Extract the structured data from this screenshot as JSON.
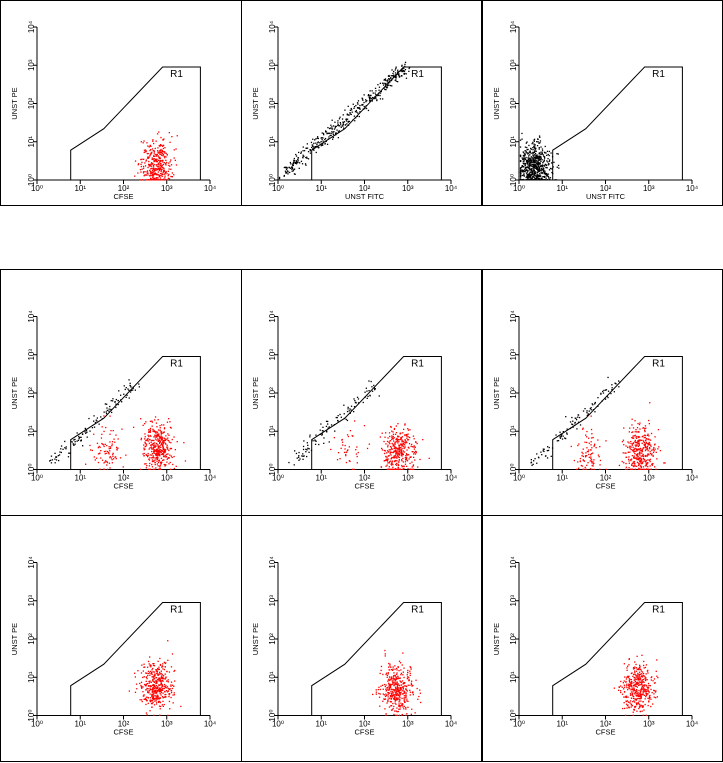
{
  "colors": {
    "gated": "#ff0000",
    "ungated": "#000000",
    "gate_line": "#000000",
    "frame": "#000000"
  },
  "chart_data": [
    {
      "type": "scatter",
      "scale": "log",
      "xlim": [
        1,
        10000
      ],
      "ylim": [
        1,
        10000
      ],
      "xlabel": "CFSE",
      "ylabel": "UNST PE",
      "x_ticks": [
        "10⁰",
        "10¹",
        "10²",
        "10³",
        "10⁴"
      ],
      "y_ticks": [
        "10⁰",
        "10¹",
        "10²",
        "10³",
        "10⁴"
      ],
      "gate": "R1",
      "populations": [
        {
          "color": "red",
          "x_center": 550,
          "y_center": 2.5,
          "n": 380
        }
      ]
    },
    {
      "type": "scatter",
      "scale": "log",
      "xlim": [
        1,
        10000
      ],
      "ylim": [
        1,
        10000
      ],
      "xlabel": "UNST FITC",
      "ylabel": "UNST PE",
      "x_ticks": [
        "10⁰",
        "10¹",
        "10²",
        "10³",
        "10⁴"
      ],
      "y_ticks": [
        "10⁰",
        "10¹",
        "10²",
        "10³",
        "10⁴"
      ],
      "gate": "R1",
      "populations": [
        {
          "color": "black",
          "shape": "diagonal",
          "x_from": 1.2,
          "x_to": 900,
          "y_from": 1.5,
          "y_to": 900,
          "n": 420
        }
      ]
    },
    {
      "type": "scatter",
      "scale": "log",
      "xlim": [
        1,
        10000
      ],
      "ylim": [
        1,
        10000
      ],
      "xlabel": "UNST FITC",
      "ylabel": "UNST PE",
      "x_ticks": [
        "10⁰",
        "10¹",
        "10²",
        "10³",
        "10⁴"
      ],
      "y_ticks": [
        "10⁰",
        "10¹",
        "10²",
        "10³",
        "10⁴"
      ],
      "gate": "R1",
      "populations": [
        {
          "color": "black",
          "x_center": 2.2,
          "y_center": 2.2,
          "n": 650
        }
      ]
    },
    {
      "type": "scatter",
      "scale": "log",
      "xlim": [
        1,
        10000
      ],
      "ylim": [
        1,
        10000
      ],
      "xlabel": "CFSE",
      "ylabel": "UNST PE",
      "x_ticks": [
        "10⁰",
        "10¹",
        "10²",
        "10³",
        "10⁴"
      ],
      "y_ticks": [
        "10⁰",
        "10¹",
        "10²",
        "10³",
        "10⁴"
      ],
      "gate": "R1",
      "populations": [
        {
          "color": "red",
          "x_center": 40,
          "y_center": 3,
          "n": 90
        },
        {
          "color": "red",
          "x_center": 600,
          "y_center": 4,
          "n": 380
        },
        {
          "color": "black",
          "shape": "diagonal",
          "x_from": 2,
          "x_to": 200,
          "y_from": 1.5,
          "y_to": 200,
          "n": 120
        }
      ]
    },
    {
      "type": "scatter",
      "scale": "log",
      "xlim": [
        1,
        10000
      ],
      "ylim": [
        1,
        10000
      ],
      "xlabel": "CFSE",
      "ylabel": "UNST PE",
      "x_ticks": [
        "10⁰",
        "10¹",
        "10²",
        "10³",
        "10⁴"
      ],
      "y_ticks": [
        "10⁰",
        "10¹",
        "10²",
        "10³",
        "10⁴"
      ],
      "gate": "R1",
      "populations": [
        {
          "color": "red",
          "x_center": 40,
          "y_center": 3,
          "n": 40
        },
        {
          "color": "red",
          "x_center": 600,
          "y_center": 3,
          "n": 360
        },
        {
          "color": "black",
          "shape": "diagonal",
          "x_from": 2,
          "x_to": 200,
          "y_from": 1.5,
          "y_to": 200,
          "n": 110
        }
      ]
    },
    {
      "type": "scatter",
      "scale": "log",
      "xlim": [
        1,
        10000
      ],
      "ylim": [
        1,
        10000
      ],
      "xlabel": "CFSE",
      "ylabel": "UNST PE",
      "x_ticks": [
        "10⁰",
        "10¹",
        "10²",
        "10³",
        "10⁴"
      ],
      "y_ticks": [
        "10⁰",
        "10¹",
        "10²",
        "10³",
        "10⁴"
      ],
      "gate": "R1",
      "populations": [
        {
          "color": "red",
          "x_center": 40,
          "y_center": 3,
          "n": 90
        },
        {
          "color": "red",
          "x_center": 600,
          "y_center": 3,
          "n": 360
        },
        {
          "color": "black",
          "shape": "diagonal",
          "x_from": 2,
          "x_to": 200,
          "y_from": 1.5,
          "y_to": 200,
          "n": 110
        }
      ]
    },
    {
      "type": "scatter",
      "scale": "log",
      "xlim": [
        1,
        10000
      ],
      "ylim": [
        1,
        10000
      ],
      "xlabel": "CFSE",
      "ylabel": "UNST PE",
      "x_ticks": [
        "10⁰",
        "10¹",
        "10²",
        "10³",
        "10⁴"
      ],
      "y_ticks": [
        "10⁰",
        "10¹",
        "10²",
        "10³",
        "10⁴"
      ],
      "gate": "R1",
      "populations": [
        {
          "color": "red",
          "x_center": 550,
          "y_center": 6,
          "n": 420
        }
      ]
    },
    {
      "type": "scatter",
      "scale": "log",
      "xlim": [
        1,
        10000
      ],
      "ylim": [
        1,
        10000
      ],
      "xlabel": "CFSE",
      "ylabel": "UNST PE",
      "x_ticks": [
        "10⁰",
        "10¹",
        "10²",
        "10³",
        "10⁴"
      ],
      "y_ticks": [
        "10⁰",
        "10¹",
        "10²",
        "10³",
        "10⁴"
      ],
      "gate": "R1",
      "populations": [
        {
          "color": "red",
          "x_center": 550,
          "y_center": 5,
          "n": 400
        }
      ]
    },
    {
      "type": "scatter",
      "scale": "log",
      "xlim": [
        1,
        10000
      ],
      "ylim": [
        1,
        10000
      ],
      "xlabel": "CFSE",
      "ylabel": "UNST PE",
      "x_ticks": [
        "10⁰",
        "10¹",
        "10²",
        "10³",
        "10⁴"
      ],
      "y_ticks": [
        "10⁰",
        "10¹",
        "10²",
        "10³",
        "10⁴"
      ],
      "gate": "R1",
      "populations": [
        {
          "color": "red",
          "x_center": 550,
          "y_center": 5,
          "n": 400
        }
      ]
    }
  ]
}
